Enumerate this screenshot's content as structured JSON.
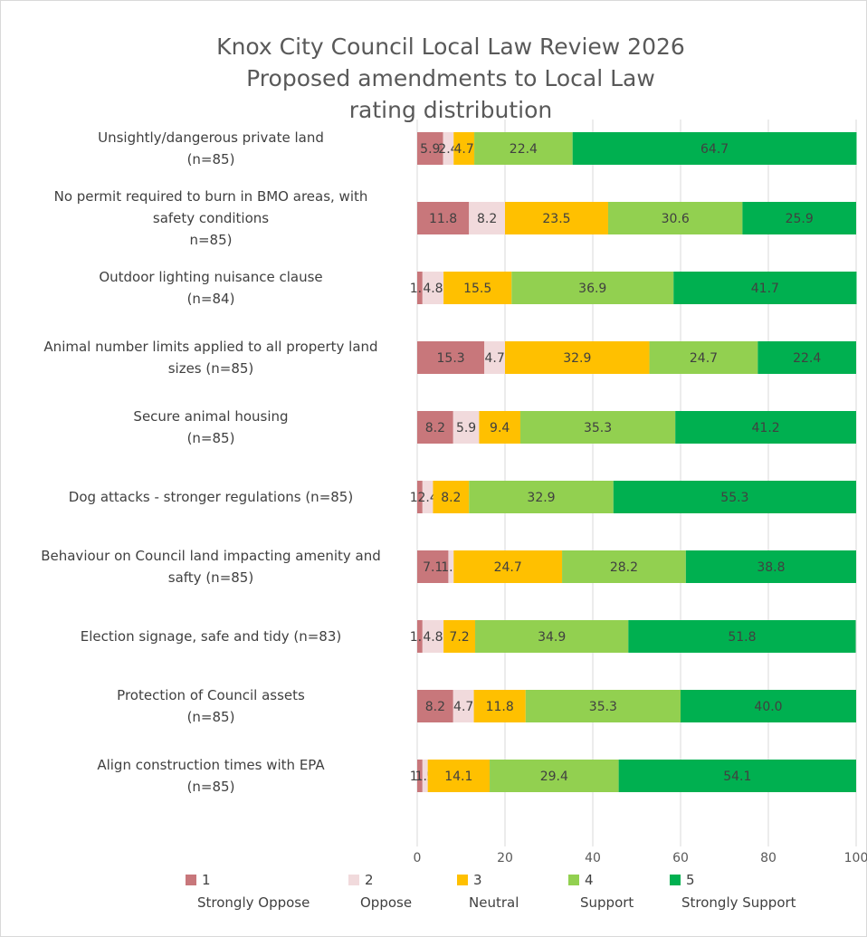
{
  "chart_data": {
    "type": "bar",
    "orientation": "horizontal",
    "stacked": true,
    "title": [
      "Knox City Council Local Law Review 2026",
      "Proposed amendments to Local Law",
      "rating distribution"
    ],
    "categories": [
      [
        "Unsightly/dangerous private land",
        "(n=85)"
      ],
      [
        "No permit required to burn in BMO areas, with",
        "safety conditions",
        "n=85)"
      ],
      [
        "Outdoor lighting nuisance clause",
        "(n=84)"
      ],
      [
        "Animal number limits applied to all property land",
        "sizes (n=85)"
      ],
      [
        "Secure animal housing",
        "(n=85)"
      ],
      [
        "Dog attacks - stronger regulations (n=85)"
      ],
      [
        "Behaviour on Council land impacting amenity and",
        "safty (n=85)"
      ],
      [
        "Election signage, safe and tidy (n=83)"
      ],
      [
        "Protection of Council assets",
        "(n=85)"
      ],
      [
        "Align construction times with EPA",
        "(n=85)"
      ]
    ],
    "series": [
      {
        "name": "1",
        "sublabel": "Strongly Oppose",
        "color": "#c8777b",
        "values": [
          5.9,
          11.8,
          1.2,
          15.3,
          8.2,
          1.2,
          7.1,
          1.2,
          8.2,
          1.2
        ]
      },
      {
        "name": "2",
        "sublabel": "Oppose",
        "color": "#f1dadc",
        "values": [
          2.4,
          8.2,
          4.8,
          4.7,
          5.9,
          2.4,
          1.2,
          4.8,
          4.7,
          1.2
        ]
      },
      {
        "name": "3",
        "sublabel": "Neutral",
        "color": "#ffc000",
        "values": [
          4.7,
          23.5,
          15.5,
          32.9,
          9.4,
          8.2,
          24.7,
          7.2,
          11.8,
          14.1
        ]
      },
      {
        "name": "4",
        "sublabel": "Support",
        "color": "#92d050",
        "values": [
          22.4,
          30.6,
          36.9,
          24.7,
          35.3,
          32.9,
          28.2,
          34.9,
          35.3,
          29.4
        ]
      },
      {
        "name": "5",
        "sublabel": "Strongly Support",
        "color": "#00b050",
        "values": [
          64.7,
          25.9,
          41.7,
          22.4,
          41.2,
          55.3,
          38.8,
          51.8,
          40.0,
          54.1
        ]
      }
    ],
    "xlim": [
      0,
      100
    ],
    "xticks": [
      "0",
      "20",
      "40",
      "60",
      "80",
      "100"
    ],
    "grid": true,
    "legend": "bottom"
  }
}
